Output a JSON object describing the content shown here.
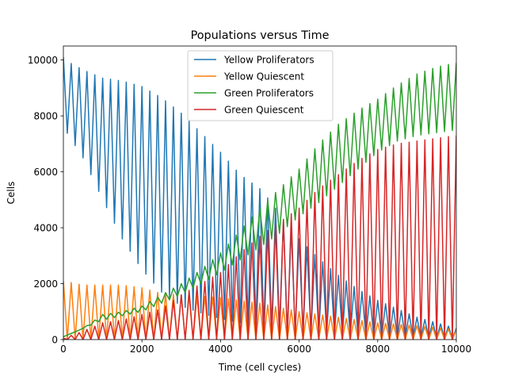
{
  "chart_data": {
    "type": "line",
    "title": "Populations versus Time",
    "xlabel": "Time (cell cycles)",
    "ylabel": "Cells",
    "xlim": [
      0,
      10000
    ],
    "ylim": [
      0,
      10500
    ],
    "xticks": [
      0,
      2000,
      4000,
      6000,
      8000,
      10000
    ],
    "yticks": [
      0,
      2000,
      4000,
      6000,
      8000,
      10000
    ],
    "xtick_labels": [
      "0",
      "2000",
      "4000",
      "6000",
      "8000",
      "10000"
    ],
    "ytick_labels": [
      "0",
      "2000",
      "4000",
      "6000",
      "8000",
      "10000"
    ],
    "grid": false,
    "legend_position": "top-center",
    "oscillation": "each series alternates between its upper envelope and lower envelope at every time step",
    "time_step": 100,
    "series": [
      {
        "name": "Yellow Proliferators",
        "color": "#1f77b4",
        "upper": {
          "x": [
            0,
            100,
            500,
            1000,
            1500,
            2000,
            2500,
            3000,
            3500,
            4000,
            4500,
            5000,
            5300,
            5600,
            6000,
            6500,
            7000,
            7500,
            8000,
            8500,
            9000,
            9500,
            10000
          ],
          "y": [
            10100,
            9950,
            9650,
            9350,
            9250,
            9050,
            8650,
            8100,
            7400,
            6700,
            5900,
            5400,
            4900,
            4300,
            3600,
            2900,
            2300,
            1800,
            1400,
            1100,
            800,
            600,
            400
          ]
        },
        "lower": {
          "x": [
            0,
            500,
            1000,
            1500,
            2000,
            2500,
            3000,
            3500,
            4000,
            4500,
            5000,
            5500,
            6000,
            7000,
            8000,
            9000,
            10000
          ],
          "y": [
            7600,
            6500,
            5000,
            3600,
            2500,
            1700,
            1200,
            950,
            750,
            600,
            450,
            350,
            250,
            150,
            100,
            60,
            40
          ]
        }
      },
      {
        "name": "Yellow Quiescent",
        "color": "#ff7f0e",
        "upper": {
          "x": [
            0,
            500,
            1000,
            1500,
            2000,
            2500,
            3000,
            3500,
            4000,
            5000,
            6000,
            7000,
            8000,
            9000,
            10000
          ],
          "y": [
            2100,
            1950,
            1950,
            1950,
            1850,
            1650,
            1600,
            1550,
            1500,
            1300,
            1000,
            800,
            600,
            500,
            350
          ]
        },
        "lower": {
          "x": [
            0,
            10000
          ],
          "y": [
            0,
            0
          ]
        }
      },
      {
        "name": "Green Proliferators",
        "color": "#2ca02c",
        "upper": {
          "x": [
            0,
            500,
            1000,
            1500,
            2000,
            2500,
            3000,
            3500,
            4000,
            4500,
            5000,
            5500,
            6000,
            6500,
            7000,
            7500,
            8000,
            8500,
            9000,
            9500,
            10000
          ],
          "y": [
            100,
            400,
            900,
            1000,
            1200,
            1600,
            2000,
            2500,
            3100,
            3900,
            4700,
            5400,
            6100,
            7000,
            7700,
            8200,
            8600,
            9100,
            9500,
            9750,
            9900
          ]
        },
        "lower": {
          "x": [
            0,
            1000,
            2000,
            3000,
            4000,
            5000,
            5500,
            6000,
            6500,
            7000,
            7500,
            8000,
            8500,
            9000,
            9500,
            10000
          ],
          "y": [
            100,
            700,
            1000,
            1600,
            2400,
            3300,
            3800,
            4400,
            4900,
            5500,
            6100,
            6700,
            7100,
            7300,
            7400,
            7500
          ]
        }
      },
      {
        "name": "Green Quiescent",
        "color": "#d62728",
        "upper": {
          "x": [
            0,
            500,
            1000,
            1500,
            2000,
            2500,
            3000,
            3500,
            4000,
            4500,
            5000,
            5500,
            6000,
            6500,
            7000,
            7500,
            8000,
            8500,
            9000,
            9500,
            10000
          ],
          "y": [
            50,
            300,
            600,
            700,
            900,
            1100,
            1600,
            2000,
            2400,
            3100,
            3700,
            4200,
            4700,
            5400,
            5900,
            6400,
            6800,
            7000,
            7100,
            7200,
            7300
          ]
        },
        "lower": {
          "x": [
            0,
            10000
          ],
          "y": [
            0,
            0
          ]
        }
      }
    ]
  }
}
